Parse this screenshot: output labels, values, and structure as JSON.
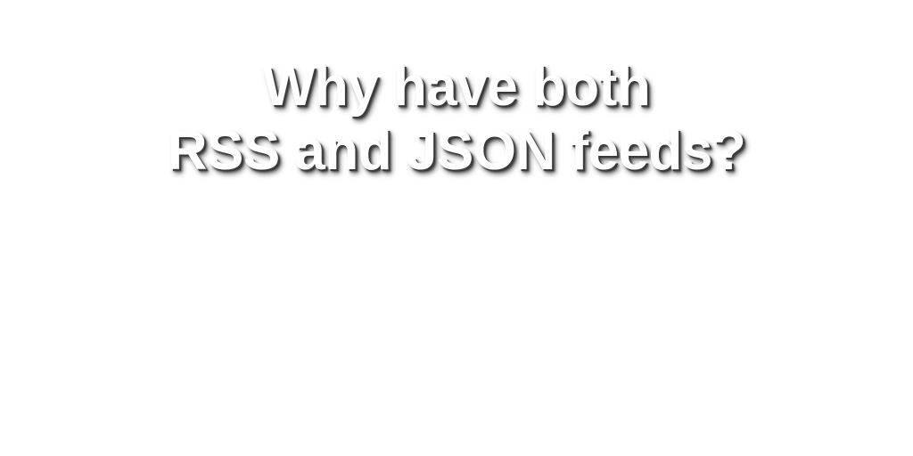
{
  "title": {
    "line1": "Why have both",
    "line2": "RSS and JSON feeds?"
  },
  "colors": {
    "background": "#ffffff",
    "text": "#ffffff",
    "shadow": "#3a3a3a"
  }
}
